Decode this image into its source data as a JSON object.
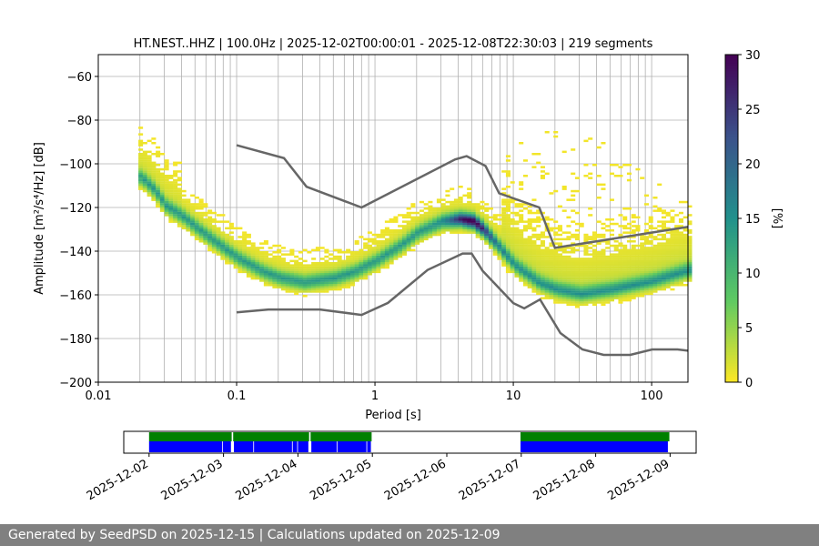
{
  "chart_data": {
    "type": "heatmap",
    "title": "HT.NEST..HHZ | 100.0Hz | 2025-12-02T00:00:01 - 2025-12-08T22:30:03 | 219 segments",
    "xlabel": "Period [s]",
    "ylabel": "Amplitude [m²/s⁴/Hz] [dB]",
    "xscale": "log",
    "xlim": [
      0.01,
      183
    ],
    "ylim": [
      -200,
      -50
    ],
    "grid": true,
    "xticks": [
      {
        "v": 0.01,
        "label": "0.01"
      },
      {
        "v": 0.1,
        "label": "0.1"
      },
      {
        "v": 1,
        "label": "1"
      },
      {
        "v": 10,
        "label": "10"
      },
      {
        "v": 100,
        "label": "100"
      }
    ],
    "yticks": [
      {
        "v": -60,
        "label": "−60"
      },
      {
        "v": -80,
        "label": "−80"
      },
      {
        "v": -100,
        "label": "−100"
      },
      {
        "v": -120,
        "label": "−120"
      },
      {
        "v": -140,
        "label": "−140"
      },
      {
        "v": -160,
        "label": "−160"
      },
      {
        "v": -180,
        "label": "−180"
      },
      {
        "v": -200,
        "label": "−200"
      }
    ],
    "colorbar": {
      "label": "[%]",
      "clim": [
        0,
        30
      ],
      "colormap": "viridis_r",
      "colors": [
        "#fde725",
        "#5ec962",
        "#21918c",
        "#3b528b",
        "#440154"
      ],
      "ticks": [
        {
          "v": 0,
          "label": "0"
        },
        {
          "v": 5,
          "label": "5"
        },
        {
          "v": 10,
          "label": "10"
        },
        {
          "v": 15,
          "label": "15"
        },
        {
          "v": 20,
          "label": "20"
        },
        {
          "v": 25,
          "label": "25"
        },
        {
          "v": 30,
          "label": "30"
        }
      ]
    },
    "mode_curve": {
      "period": [
        0.02,
        0.025,
        0.03,
        0.04,
        0.05,
        0.07,
        0.1,
        0.15,
        0.2,
        0.3,
        0.5,
        0.7,
        1,
        1.5,
        2,
        3,
        4,
        5,
        6,
        8,
        10,
        15,
        20,
        30,
        50,
        100,
        183
      ],
      "db": [
        -107,
        -113,
        -120,
        -125,
        -130,
        -137,
        -144,
        -150,
        -153,
        -155,
        -153,
        -150,
        -145,
        -138,
        -132,
        -127,
        -126,
        -127,
        -131,
        -140,
        -147,
        -155,
        -158,
        -160,
        -158,
        -154,
        -149
      ]
    },
    "noise_models": [
      {
        "period": [
          0.1,
          0.22,
          0.32,
          0.8,
          3.8,
          4.6,
          6.3,
          7.9,
          15.4,
          20,
          354.8
        ],
        "db": [
          -91.5,
          -97.4,
          -110.5,
          -120,
          -98,
          -96.5,
          -101,
          -113.5,
          -120,
          -138.5,
          -126
        ],
        "color": "#666666"
      },
      {
        "period": [
          0.1,
          0.17,
          0.4,
          0.8,
          1.24,
          2.4,
          4.3,
          5,
          6,
          10,
          12,
          15.6,
          21.9,
          31.6,
          45,
          70,
          101,
          154,
          328
        ],
        "db": [
          -168,
          -166.7,
          -166.7,
          -169.2,
          -163.7,
          -148.6,
          -141.1,
          -141.1,
          -149,
          -163.8,
          -166.2,
          -162.1,
          -177.5,
          -185,
          -187.5,
          -187.5,
          -185,
          -185,
          -187.5
        ],
        "color": "#666666"
      }
    ],
    "timeline": {
      "date_ticks": [
        "2025-12-02",
        "2025-12-03",
        "2025-12-04",
        "2025-12-05",
        "2025-12-06",
        "2025-12-07",
        "2025-12-08",
        "2025-12-09"
      ],
      "xlim_days": [
        -0.34,
        7.35
      ],
      "data_segments": [
        [
          0,
          1.11
        ],
        [
          1.13,
          2.15
        ],
        [
          2.17,
          2.99
        ],
        [
          4.99,
          6.99
        ]
      ],
      "psd_segments": [
        [
          0,
          0.98
        ],
        [
          0.99,
          1.1
        ],
        [
          1.14,
          1.4
        ],
        [
          1.41,
          1.92
        ],
        [
          1.93,
          1.99
        ],
        [
          2.0,
          2.14
        ],
        [
          2.18,
          2.52
        ],
        [
          2.53,
          2.92
        ],
        [
          2.93,
          2.98
        ],
        [
          4.99,
          6.97
        ]
      ],
      "data_color": "#008000",
      "psd_color": "#0000ff"
    }
  },
  "footer": {
    "text": "Generated by SeedPSD on 2025-12-15 | Calculations updated on 2025-12-09"
  }
}
